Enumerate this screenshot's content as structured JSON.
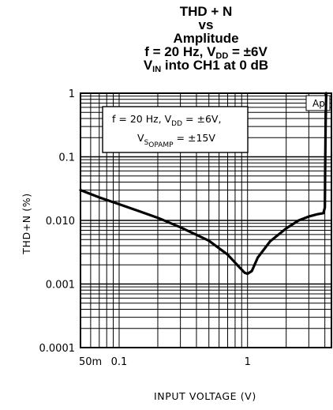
{
  "chart_data": {
    "type": "line",
    "title_lines": [
      "THD + N",
      "vs",
      "Amplitude"
    ],
    "title_line4": {
      "a": "f = 20 Hz, V",
      "sub": "DD",
      "b": " = ±6V"
    },
    "title_line5": {
      "a": "V",
      "sub": "IN",
      "b": " into CH1 at 0 dB"
    },
    "xlabel": "INPUT VOLTAGE (V)",
    "ylabel": "THD+N (%)",
    "x_scale": "log",
    "y_scale": "log",
    "xlim": [
      0.05,
      4.5
    ],
    "ylim": [
      0.0001,
      1
    ],
    "x_tick_labels": [
      {
        "value": 0.05,
        "label": "50m"
      },
      {
        "value": 0.1,
        "label": "0.1"
      },
      {
        "value": 1,
        "label": "1"
      }
    ],
    "y_tick_labels": [
      {
        "value": 1,
        "label": "1"
      },
      {
        "value": 0.1,
        "label": "0.1"
      },
      {
        "value": 0.01,
        "label": "0.010"
      },
      {
        "value": 0.001,
        "label": "0.001"
      },
      {
        "value": 0.0001,
        "label": "0.0001"
      }
    ],
    "annotation": {
      "line1": {
        "a": "f = 20 Hz, V",
        "sub": "DD",
        "b": " = ±6V,"
      },
      "line2": {
        "a": "V",
        "sub": "S",
        "sub2": "OPAMP",
        "b": " = ±15V"
      }
    },
    "corner_label": "Ap",
    "grid": true,
    "series": [
      {
        "x": [
          0.05,
          0.07,
          0.1,
          0.15,
          0.2,
          0.3,
          0.5,
          0.7,
          0.85,
          0.95,
          1.0,
          1.08,
          1.2,
          1.5,
          2.0,
          2.5,
          3.0,
          3.5,
          3.9,
          4.0,
          4.02,
          4.05,
          4.1
        ],
        "y": [
          0.03,
          0.023,
          0.018,
          0.0135,
          0.011,
          0.0078,
          0.0048,
          0.0029,
          0.0019,
          0.0015,
          0.00145,
          0.0016,
          0.0026,
          0.0047,
          0.0075,
          0.01,
          0.0115,
          0.0125,
          0.013,
          0.016,
          0.05,
          0.3,
          1.0
        ]
      }
    ]
  }
}
